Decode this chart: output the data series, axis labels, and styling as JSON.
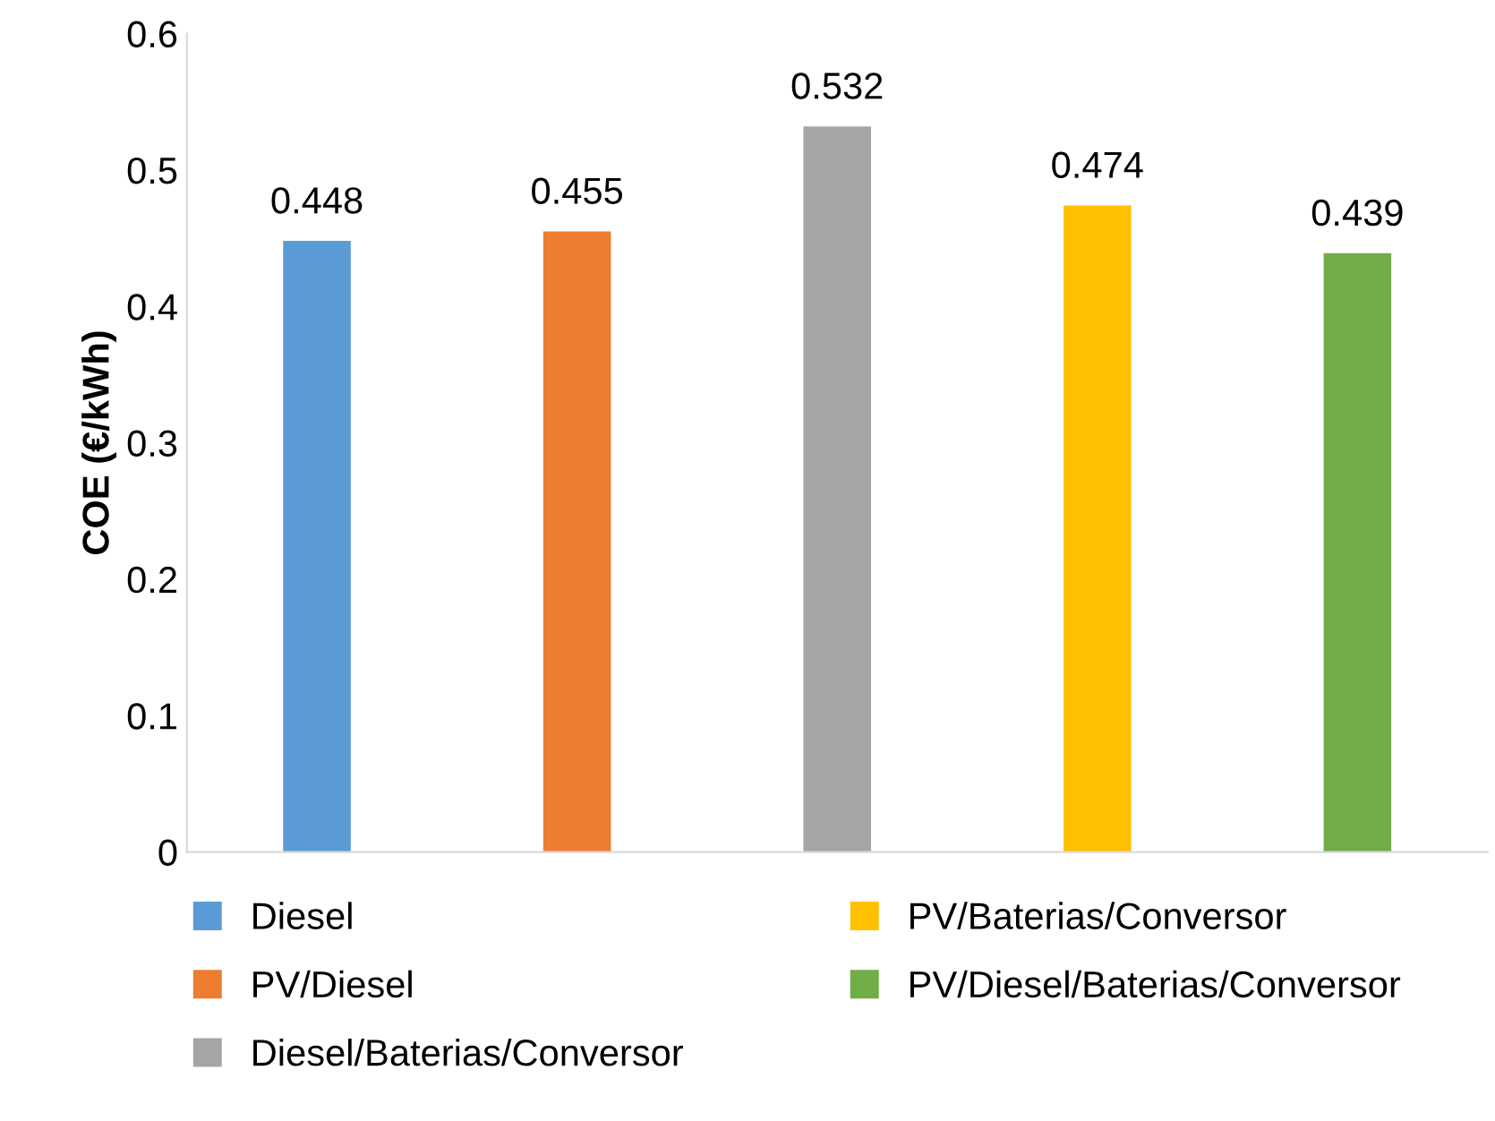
{
  "chart_data": {
    "type": "bar",
    "ylabel": "COE (€/kWh)",
    "categories": [
      null,
      null,
      null,
      null,
      null
    ],
    "series": [
      {
        "name": "Diesel",
        "color": "#5b9bd5",
        "values": [
          0.448,
          null,
          null,
          null,
          null
        ]
      },
      {
        "name": "PV/Diesel",
        "color": "#ed7d31",
        "values": [
          null,
          0.455,
          null,
          null,
          null
        ]
      },
      {
        "name": "Diesel/Baterias/Conversor",
        "color": "#a5a5a5",
        "values": [
          null,
          null,
          0.532,
          null,
          null
        ]
      },
      {
        "name": "PV/Baterias/Conversor",
        "color": "#ffc000",
        "values": [
          null,
          null,
          null,
          0.474,
          null
        ]
      },
      {
        "name": "PV/Diesel/Baterias/Conversor",
        "color": "#70ad47",
        "values": [
          null,
          null,
          null,
          null,
          0.439
        ]
      }
    ],
    "ylim": [
      0,
      0.6
    ],
    "yticks": [
      0,
      0.1,
      0.2,
      0.3,
      0.4,
      0.5,
      0.6
    ],
    "data_labels": true,
    "grid": false,
    "legend": "bottom"
  }
}
